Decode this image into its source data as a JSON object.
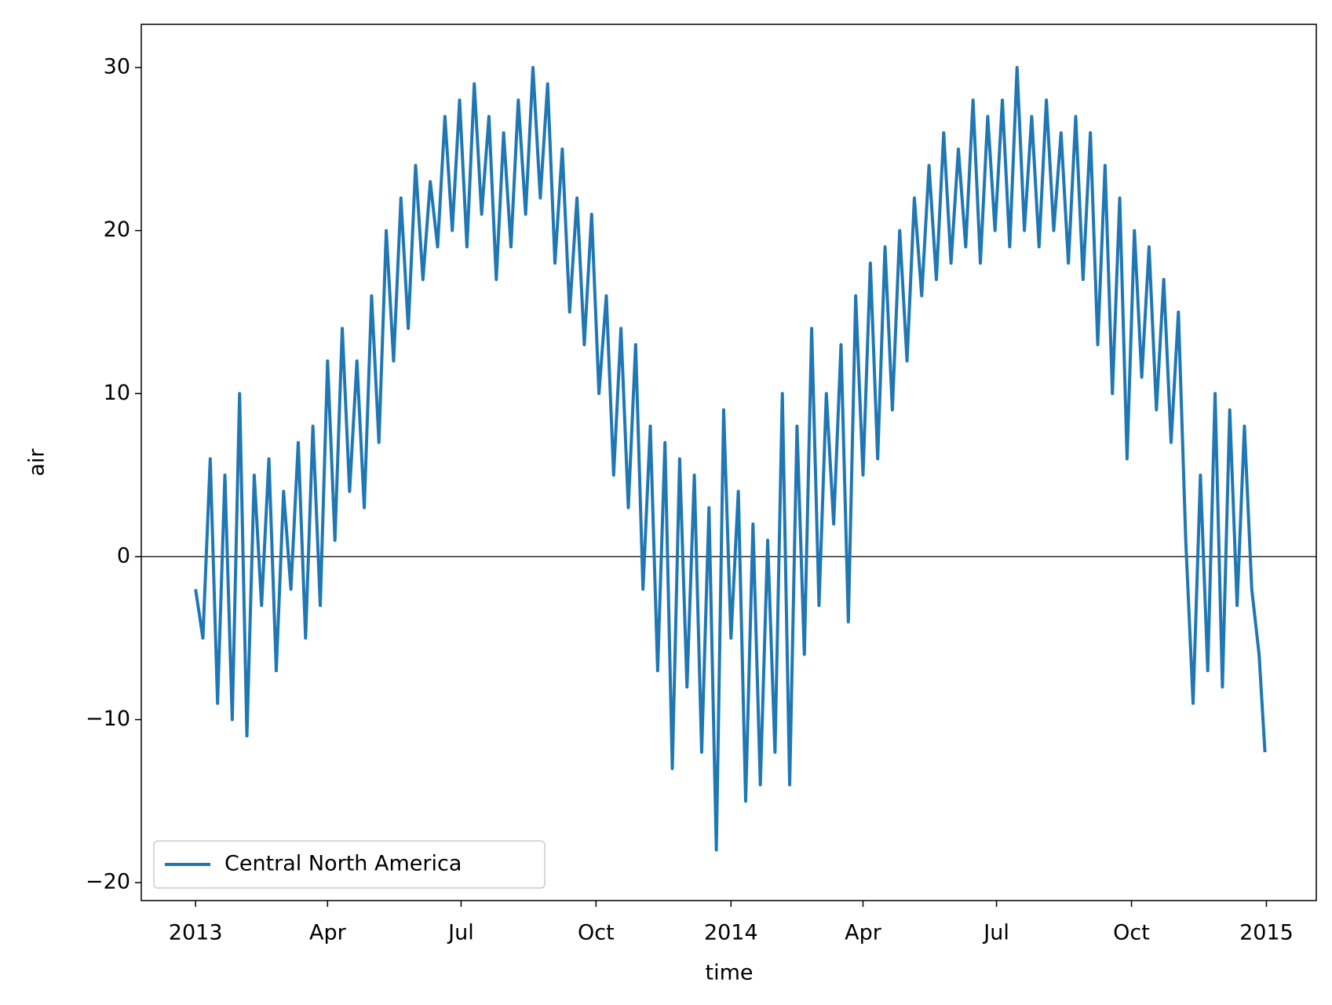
{
  "chart_data": {
    "type": "line",
    "xlabel": "time",
    "ylabel": "air",
    "xlim": [
      "2012-11-25",
      "2015-02-04"
    ],
    "ylim": [
      -21.1,
      32.65
    ],
    "xticks": [
      {
        "value": "2013-01-01",
        "label": "2013"
      },
      {
        "value": "2013-04-01",
        "label": "Apr"
      },
      {
        "value": "2013-07-01",
        "label": "Jul"
      },
      {
        "value": "2013-10-01",
        "label": "Oct"
      },
      {
        "value": "2014-01-01",
        "label": "2014"
      },
      {
        "value": "2014-04-01",
        "label": "Apr"
      },
      {
        "value": "2014-07-01",
        "label": "Jul"
      },
      {
        "value": "2014-10-01",
        "label": "Oct"
      },
      {
        "value": "2015-01-01",
        "label": "2015"
      }
    ],
    "yticks": [
      {
        "value": -20,
        "label": "−20"
      },
      {
        "value": -10,
        "label": "−10"
      },
      0,
      10,
      20,
      30
    ],
    "axhline": 0,
    "legend": "lower left",
    "x": [
      "2013-01-01",
      "2013-01-06",
      "2013-01-11",
      "2013-01-16",
      "2013-01-21",
      "2013-01-26",
      "2013-01-31",
      "2013-02-05",
      "2013-02-10",
      "2013-02-15",
      "2013-02-20",
      "2013-02-25",
      "2013-03-02",
      "2013-03-07",
      "2013-03-12",
      "2013-03-17",
      "2013-03-22",
      "2013-03-27",
      "2013-04-01",
      "2013-04-06",
      "2013-04-11",
      "2013-04-16",
      "2013-04-21",
      "2013-04-26",
      "2013-05-01",
      "2013-05-06",
      "2013-05-11",
      "2013-05-16",
      "2013-05-21",
      "2013-05-26",
      "2013-05-31",
      "2013-06-05",
      "2013-06-10",
      "2013-06-15",
      "2013-06-20",
      "2013-06-25",
      "2013-06-30",
      "2013-07-05",
      "2013-07-10",
      "2013-07-15",
      "2013-07-20",
      "2013-07-25",
      "2013-07-30",
      "2013-08-04",
      "2013-08-09",
      "2013-08-14",
      "2013-08-19",
      "2013-08-24",
      "2013-08-29",
      "2013-09-03",
      "2013-09-08",
      "2013-09-13",
      "2013-09-18",
      "2013-09-23",
      "2013-09-28",
      "2013-10-03",
      "2013-10-08",
      "2013-10-13",
      "2013-10-18",
      "2013-10-23",
      "2013-10-28",
      "2013-11-02",
      "2013-11-07",
      "2013-11-12",
      "2013-11-17",
      "2013-11-22",
      "2013-11-27",
      "2013-12-02",
      "2013-12-07",
      "2013-12-12",
      "2013-12-17",
      "2013-12-22",
      "2013-12-27",
      "2014-01-01",
      "2014-01-06",
      "2014-01-11",
      "2014-01-16",
      "2014-01-21",
      "2014-01-26",
      "2014-01-31",
      "2014-02-05",
      "2014-02-10",
      "2014-02-15",
      "2014-02-20",
      "2014-02-25",
      "2014-03-02",
      "2014-03-07",
      "2014-03-12",
      "2014-03-17",
      "2014-03-22",
      "2014-03-27",
      "2014-04-01",
      "2014-04-06",
      "2014-04-11",
      "2014-04-16",
      "2014-04-21",
      "2014-04-26",
      "2014-05-01",
      "2014-05-06",
      "2014-05-11",
      "2014-05-16",
      "2014-05-21",
      "2014-05-26",
      "2014-05-31",
      "2014-06-05",
      "2014-06-10",
      "2014-06-15",
      "2014-06-20",
      "2014-06-25",
      "2014-06-30",
      "2014-07-05",
      "2014-07-10",
      "2014-07-15",
      "2014-07-20",
      "2014-07-25",
      "2014-07-30",
      "2014-08-04",
      "2014-08-09",
      "2014-08-14",
      "2014-08-19",
      "2014-08-24",
      "2014-08-29",
      "2014-09-03",
      "2014-09-08",
      "2014-09-13",
      "2014-09-18",
      "2014-09-23",
      "2014-09-28",
      "2014-10-03",
      "2014-10-08",
      "2014-10-13",
      "2014-10-18",
      "2014-10-23",
      "2014-10-28",
      "2014-11-02",
      "2014-11-07",
      "2014-11-12",
      "2014-11-17",
      "2014-11-22",
      "2014-11-27",
      "2014-12-02",
      "2014-12-07",
      "2014-12-12",
      "2014-12-17",
      "2014-12-22",
      "2014-12-27",
      "2014-12-31"
    ],
    "series": [
      {
        "name": "Central North America",
        "color": "#1f77b4",
        "values": [
          -2,
          -5,
          6,
          -9,
          5,
          -10,
          10,
          -11,
          5,
          -3,
          6,
          -7,
          4,
          -2,
          7,
          -5,
          8,
          -3,
          12,
          1,
          14,
          4,
          12,
          3,
          16,
          7,
          20,
          12,
          22,
          14,
          24,
          17,
          23,
          19,
          27,
          20,
          28,
          19,
          29,
          21,
          27,
          17,
          26,
          19,
          28,
          21,
          30,
          22,
          29,
          18,
          25,
          15,
          22,
          13,
          21,
          10,
          16,
          5,
          14,
          3,
          13,
          -2,
          8,
          -7,
          7,
          -13,
          6,
          -8,
          5,
          -12,
          3,
          -18,
          9,
          -5,
          4,
          -15,
          2,
          -14,
          1,
          -12,
          10,
          -14,
          8,
          -6,
          14,
          -3,
          10,
          2,
          13,
          -4,
          16,
          5,
          18,
          6,
          19,
          9,
          20,
          12,
          22,
          16,
          24,
          17,
          26,
          18,
          25,
          19,
          28,
          18,
          27,
          20,
          28,
          19,
          30,
          20,
          27,
          19,
          28,
          20,
          26,
          18,
          27,
          17,
          26,
          13,
          24,
          10,
          22,
          6,
          20,
          11,
          19,
          9,
          17,
          7,
          15,
          1,
          -9,
          5,
          -7,
          10,
          -8,
          9,
          -3,
          8,
          -2,
          -6,
          -12
        ]
      }
    ]
  }
}
